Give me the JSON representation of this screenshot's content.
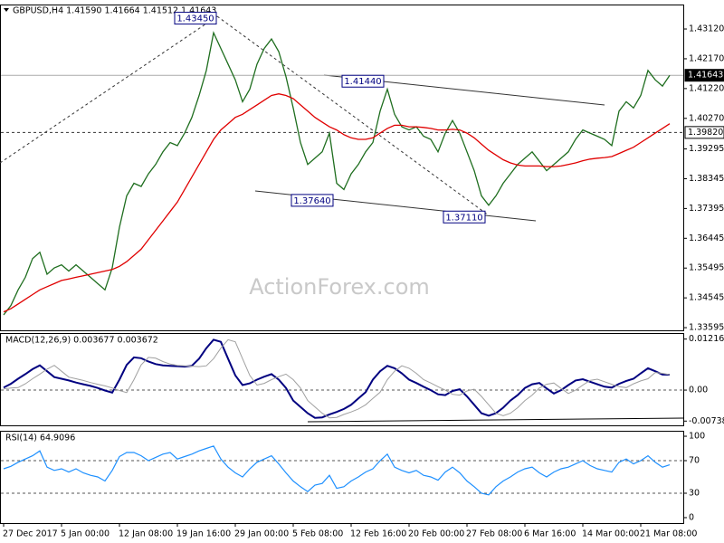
{
  "chart_data": [
    {
      "type": "line",
      "title": "GBPUSD,H4  1.41590 1.41664 1.41512 1.41643",
      "watermark": "ActionForex.com",
      "categories": [
        "27 Dec 2017",
        null,
        null,
        null,
        null,
        null,
        null,
        null,
        "5 Jan 00:00",
        null,
        null,
        null,
        null,
        null,
        null,
        null,
        "12 Jan 08:00",
        null,
        null,
        null,
        null,
        null,
        null,
        null,
        "19 Jan 16:00",
        null,
        null,
        null,
        null,
        null,
        null,
        null,
        "29 Jan 00:00",
        null,
        null,
        null,
        null,
        null,
        null,
        null,
        "5 Feb 08:00",
        null,
        null,
        null,
        null,
        null,
        null,
        null,
        "12 Feb 16:00",
        null,
        null,
        null,
        null,
        null,
        null,
        null,
        "20 Feb 00:00",
        null,
        null,
        null,
        null,
        null,
        null,
        null,
        "27 Feb 08:00",
        null,
        null,
        null,
        null,
        null,
        null,
        null,
        "6 Mar 16:00",
        null,
        null,
        null,
        null,
        null,
        null,
        null,
        "14 Mar 00:00",
        null,
        null,
        null,
        null,
        null,
        null,
        null,
        "21 Mar 08:00",
        null,
        null,
        null,
        null
      ],
      "series": [
        {
          "color": "#1f6e1f",
          "values": [
            1.34,
            1.343,
            1.348,
            1.352,
            1.358,
            1.36,
            1.353,
            1.355,
            1.356,
            1.354,
            1.356,
            1.354,
            1.352,
            1.35,
            1.348,
            1.355,
            1.368,
            1.378,
            1.382,
            1.381,
            1.385,
            1.388,
            1.392,
            1.395,
            1.394,
            1.398,
            1.403,
            1.41,
            1.418,
            1.43,
            1.425,
            1.42,
            1.415,
            1.408,
            1.412,
            1.42,
            1.425,
            1.428,
            1.424,
            1.416,
            1.406,
            1.395,
            1.388,
            1.39,
            1.392,
            1.398,
            1.382,
            1.38,
            1.385,
            1.388,
            1.392,
            1.395,
            1.405,
            1.412,
            1.404,
            1.4,
            1.399,
            1.4,
            1.397,
            1.396,
            1.392,
            1.398,
            1.402,
            1.398,
            1.392,
            1.386,
            1.378,
            1.375,
            1.378,
            1.382,
            1.385,
            1.388,
            1.39,
            1.392,
            1.389,
            1.386,
            1.388,
            1.39,
            1.392,
            1.396,
            1.399,
            1.398,
            1.397,
            1.396,
            1.394,
            1.405,
            1.408,
            1.406,
            1.41,
            1.418,
            1.415,
            1.413,
            1.41643
          ]
        },
        {
          "color": "#e00000",
          "values": [
            1.341,
            1.342,
            1.3435,
            1.345,
            1.3465,
            1.348,
            1.349,
            1.35,
            1.351,
            1.3515,
            1.352,
            1.3525,
            1.353,
            1.3535,
            1.354,
            1.3545,
            1.3555,
            1.357,
            1.359,
            1.361,
            1.364,
            1.367,
            1.37,
            1.373,
            1.376,
            1.38,
            1.384,
            1.388,
            1.392,
            1.396,
            1.399,
            1.401,
            1.403,
            1.404,
            1.4055,
            1.407,
            1.4085,
            1.41,
            1.4105,
            1.41,
            1.409,
            1.407,
            1.405,
            1.403,
            1.4015,
            1.4,
            1.399,
            1.3975,
            1.3965,
            1.396,
            1.396,
            1.3965,
            1.398,
            1.3995,
            1.4005,
            1.4005,
            1.4,
            1.4,
            1.3998,
            1.3995,
            1.399,
            1.399,
            1.3992,
            1.399,
            1.398,
            1.3965,
            1.3945,
            1.3925,
            1.391,
            1.3895,
            1.3885,
            1.3878,
            1.3875,
            1.3875,
            1.3875,
            1.3873,
            1.3873,
            1.3875,
            1.388,
            1.3885,
            1.3892,
            1.3897,
            1.39,
            1.3902,
            1.3905,
            1.3915,
            1.3925,
            1.3935,
            1.395,
            1.3965,
            1.398,
            1.3995,
            1.401
          ]
        }
      ],
      "ylim": [
        1.3351,
        1.439
      ],
      "yticks": [
        {
          "value": 1.4312,
          "label": "1.43120"
        },
        {
          "value": 1.4217,
          "label": "1.42170"
        },
        {
          "value": 1.4122,
          "label": "1.41220"
        },
        {
          "value": 1.4027,
          "label": "1.40270"
        },
        1.39295,
        1.38345,
        1.37395,
        1.36445,
        1.35495,
        1.34545,
        1.33595
      ],
      "hlines": [
        {
          "value": 1.41643,
          "style": "solid"
        },
        {
          "value": 1.3982,
          "label": "1.39820",
          "style": "dashed"
        }
      ],
      "annotations": [
        {
          "value": 1.4345,
          "label": "1.43450"
        },
        {
          "value": 1.4144,
          "label": "1.41440"
        },
        {
          "value": 1.3764,
          "label": "1.37640"
        },
        {
          "value": 1.3711,
          "label": "1.37110"
        }
      ]
    },
    {
      "type": "line",
      "title": "MACD(12,26,9) 0.003677 0.003672",
      "series": [
        {
          "color": "#000080",
          "values": [
            0.0006,
            0.0015,
            0.0027,
            0.0038,
            0.005,
            0.0059,
            0.0045,
            0.0031,
            0.0027,
            0.0023,
            0.0018,
            0.0014,
            0.001,
            0.0005,
            -0.0001,
            -0.0006,
            0.0025,
            0.006,
            0.0078,
            0.0076,
            0.0068,
            0.0062,
            0.0059,
            0.0058,
            0.0057,
            0.0056,
            0.0058,
            0.0075,
            0.01,
            0.012,
            0.0115,
            0.0075,
            0.0035,
            0.0012,
            0.0016,
            0.0025,
            0.0032,
            0.0038,
            0.0025,
            0.0005,
            -0.0025,
            -0.004,
            -0.0055,
            -0.0066,
            -0.0065,
            -0.0058,
            -0.0052,
            -0.0045,
            -0.0035,
            -0.002,
            -0.0005,
            0.0025,
            0.0045,
            0.0058,
            0.0052,
            0.004,
            0.0025,
            0.0017,
            0.0008,
            0.0,
            -0.001,
            -0.0012,
            -0.0002,
            0.0002,
            -0.0015,
            -0.0035,
            -0.0055,
            -0.0061,
            -0.0055,
            -0.0042,
            -0.0025,
            -0.0012,
            0.0005,
            0.0014,
            0.0017,
            0.0004,
            -0.0008,
            0.0,
            0.0012,
            0.0023,
            0.0026,
            0.002,
            0.0014,
            0.0008,
            0.0006,
            0.0015,
            0.0022,
            0.0027,
            0.004,
            0.0052,
            0.0045,
            0.0037,
            0.003677
          ]
        },
        {
          "color": "#a0a0a0",
          "values": [
            0.0003,
            0.0005,
            0.0006,
            0.0015,
            0.0027,
            0.0038,
            0.005,
            0.0059,
            0.0045,
            0.0031,
            0.0027,
            0.0023,
            0.0018,
            0.0014,
            0.001,
            0.0005,
            -0.0001,
            -0.0006,
            0.0025,
            0.006,
            0.0078,
            0.0076,
            0.0068,
            0.0062,
            0.0059,
            0.0058,
            0.0057,
            0.0056,
            0.0058,
            0.0075,
            0.01,
            0.012,
            0.0115,
            0.0075,
            0.0035,
            0.0012,
            0.0016,
            0.0025,
            0.0032,
            0.0038,
            0.0025,
            0.0005,
            -0.0025,
            -0.004,
            -0.0055,
            -0.0066,
            -0.0065,
            -0.0058,
            -0.0052,
            -0.0045,
            -0.0035,
            -0.002,
            -0.0005,
            0.0025,
            0.0045,
            0.0058,
            0.0052,
            0.004,
            0.0025,
            0.0017,
            0.0008,
            0.0,
            -0.001,
            -0.0012,
            -0.0002,
            0.0002,
            -0.0015,
            -0.0035,
            -0.0055,
            -0.0061,
            -0.0055,
            -0.0042,
            -0.0025,
            -0.0012,
            0.0005,
            0.0014,
            0.0017,
            0.0004,
            -0.0008,
            0.0,
            0.0012,
            0.0023,
            0.0026,
            0.002,
            0.0014,
            0.0008,
            0.0006,
            0.0015,
            0.0022,
            0.0027,
            0.0042,
            0.004,
            0.003672
          ]
        }
      ],
      "ylim": [
        -0.0084,
        0.0136
      ],
      "yticks": [
        0.012164,
        {
          "value": 0,
          "label": "0.00"
        },
        -0.007384
      ],
      "dashed_grid": true
    },
    {
      "type": "line",
      "title": "RSI(14) 64.9096",
      "series": [
        {
          "color": "#1e90ff",
          "values": [
            60,
            63,
            68,
            72,
            76,
            82,
            62,
            58,
            60,
            56,
            60,
            55,
            52,
            50,
            45,
            58,
            75,
            80,
            80,
            76,
            70,
            74,
            78,
            80,
            72,
            75,
            78,
            82,
            85,
            88,
            72,
            62,
            55,
            50,
            60,
            68,
            72,
            76,
            66,
            55,
            45,
            38,
            32,
            40,
            42,
            52,
            36,
            38,
            45,
            50,
            56,
            60,
            70,
            78,
            62,
            58,
            55,
            58,
            52,
            50,
            46,
            56,
            62,
            55,
            45,
            38,
            30,
            28,
            38,
            45,
            50,
            56,
            60,
            62,
            55,
            50,
            56,
            60,
            62,
            66,
            70,
            64,
            60,
            58,
            56,
            68,
            72,
            66,
            70,
            76,
            68,
            62,
            64.9096
          ]
        }
      ],
      "ylim": [
        -6.7,
        106.7
      ],
      "yticks": [
        100,
        70,
        30,
        0
      ],
      "dashed_grid": true
    }
  ]
}
